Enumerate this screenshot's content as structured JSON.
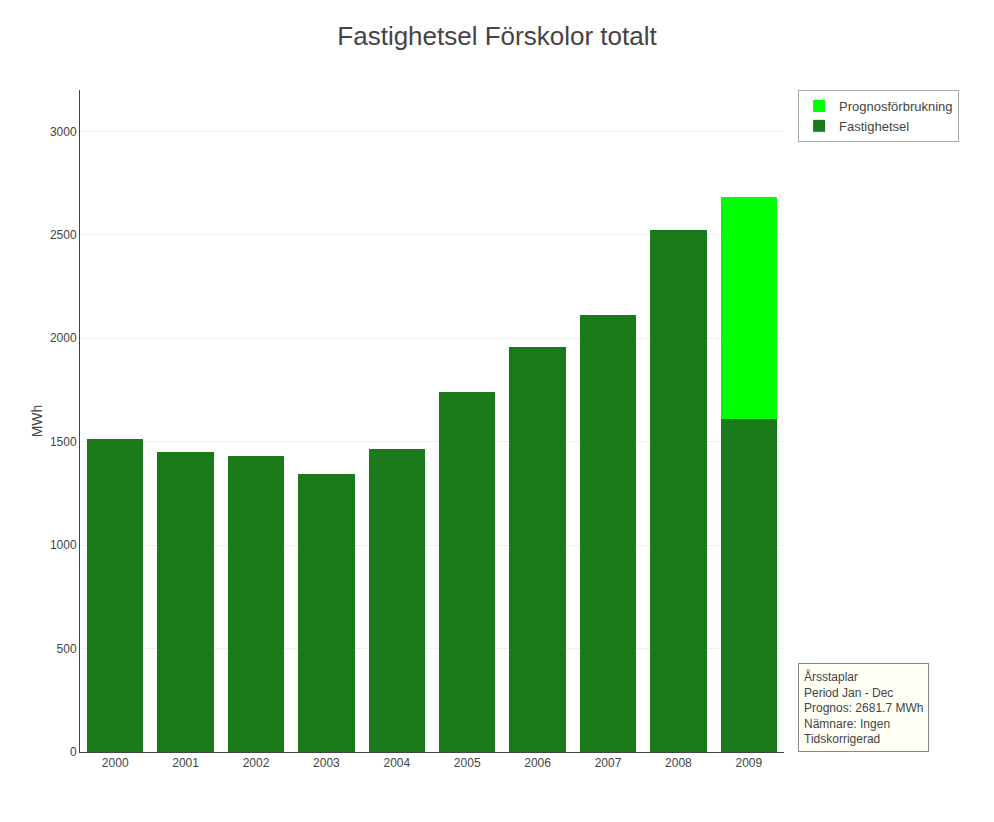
{
  "chart_data": {
    "type": "bar",
    "stacked": true,
    "title": "Fastighetsel Förskolor totalt",
    "ylabel": "MWh",
    "categories": [
      "2000",
      "2001",
      "2002",
      "2003",
      "2004",
      "2005",
      "2006",
      "2007",
      "2008",
      "2009"
    ],
    "series": [
      {
        "name": "Fastighetsel",
        "color": "#1a7a1a",
        "values": [
          1515,
          1450,
          1430,
          1345,
          1465,
          1740,
          1960,
          2110,
          2525,
          1610
        ]
      },
      {
        "name": "Prognosförbrukning",
        "color": "#00ff00",
        "values": [
          0,
          0,
          0,
          0,
          0,
          0,
          0,
          0,
          0,
          1071.7
        ]
      }
    ],
    "ylim": [
      0,
      3200
    ],
    "yticks": [
      0,
      500,
      1000,
      1500,
      2000,
      2500,
      3000
    ],
    "grid": true,
    "legend": "upper right",
    "annotation": "Årsstaplar\nPeriod Jan - Dec\nPrognos: 2681.7 MWh\nNämnare: Ingen\nTidskorrigerad"
  }
}
